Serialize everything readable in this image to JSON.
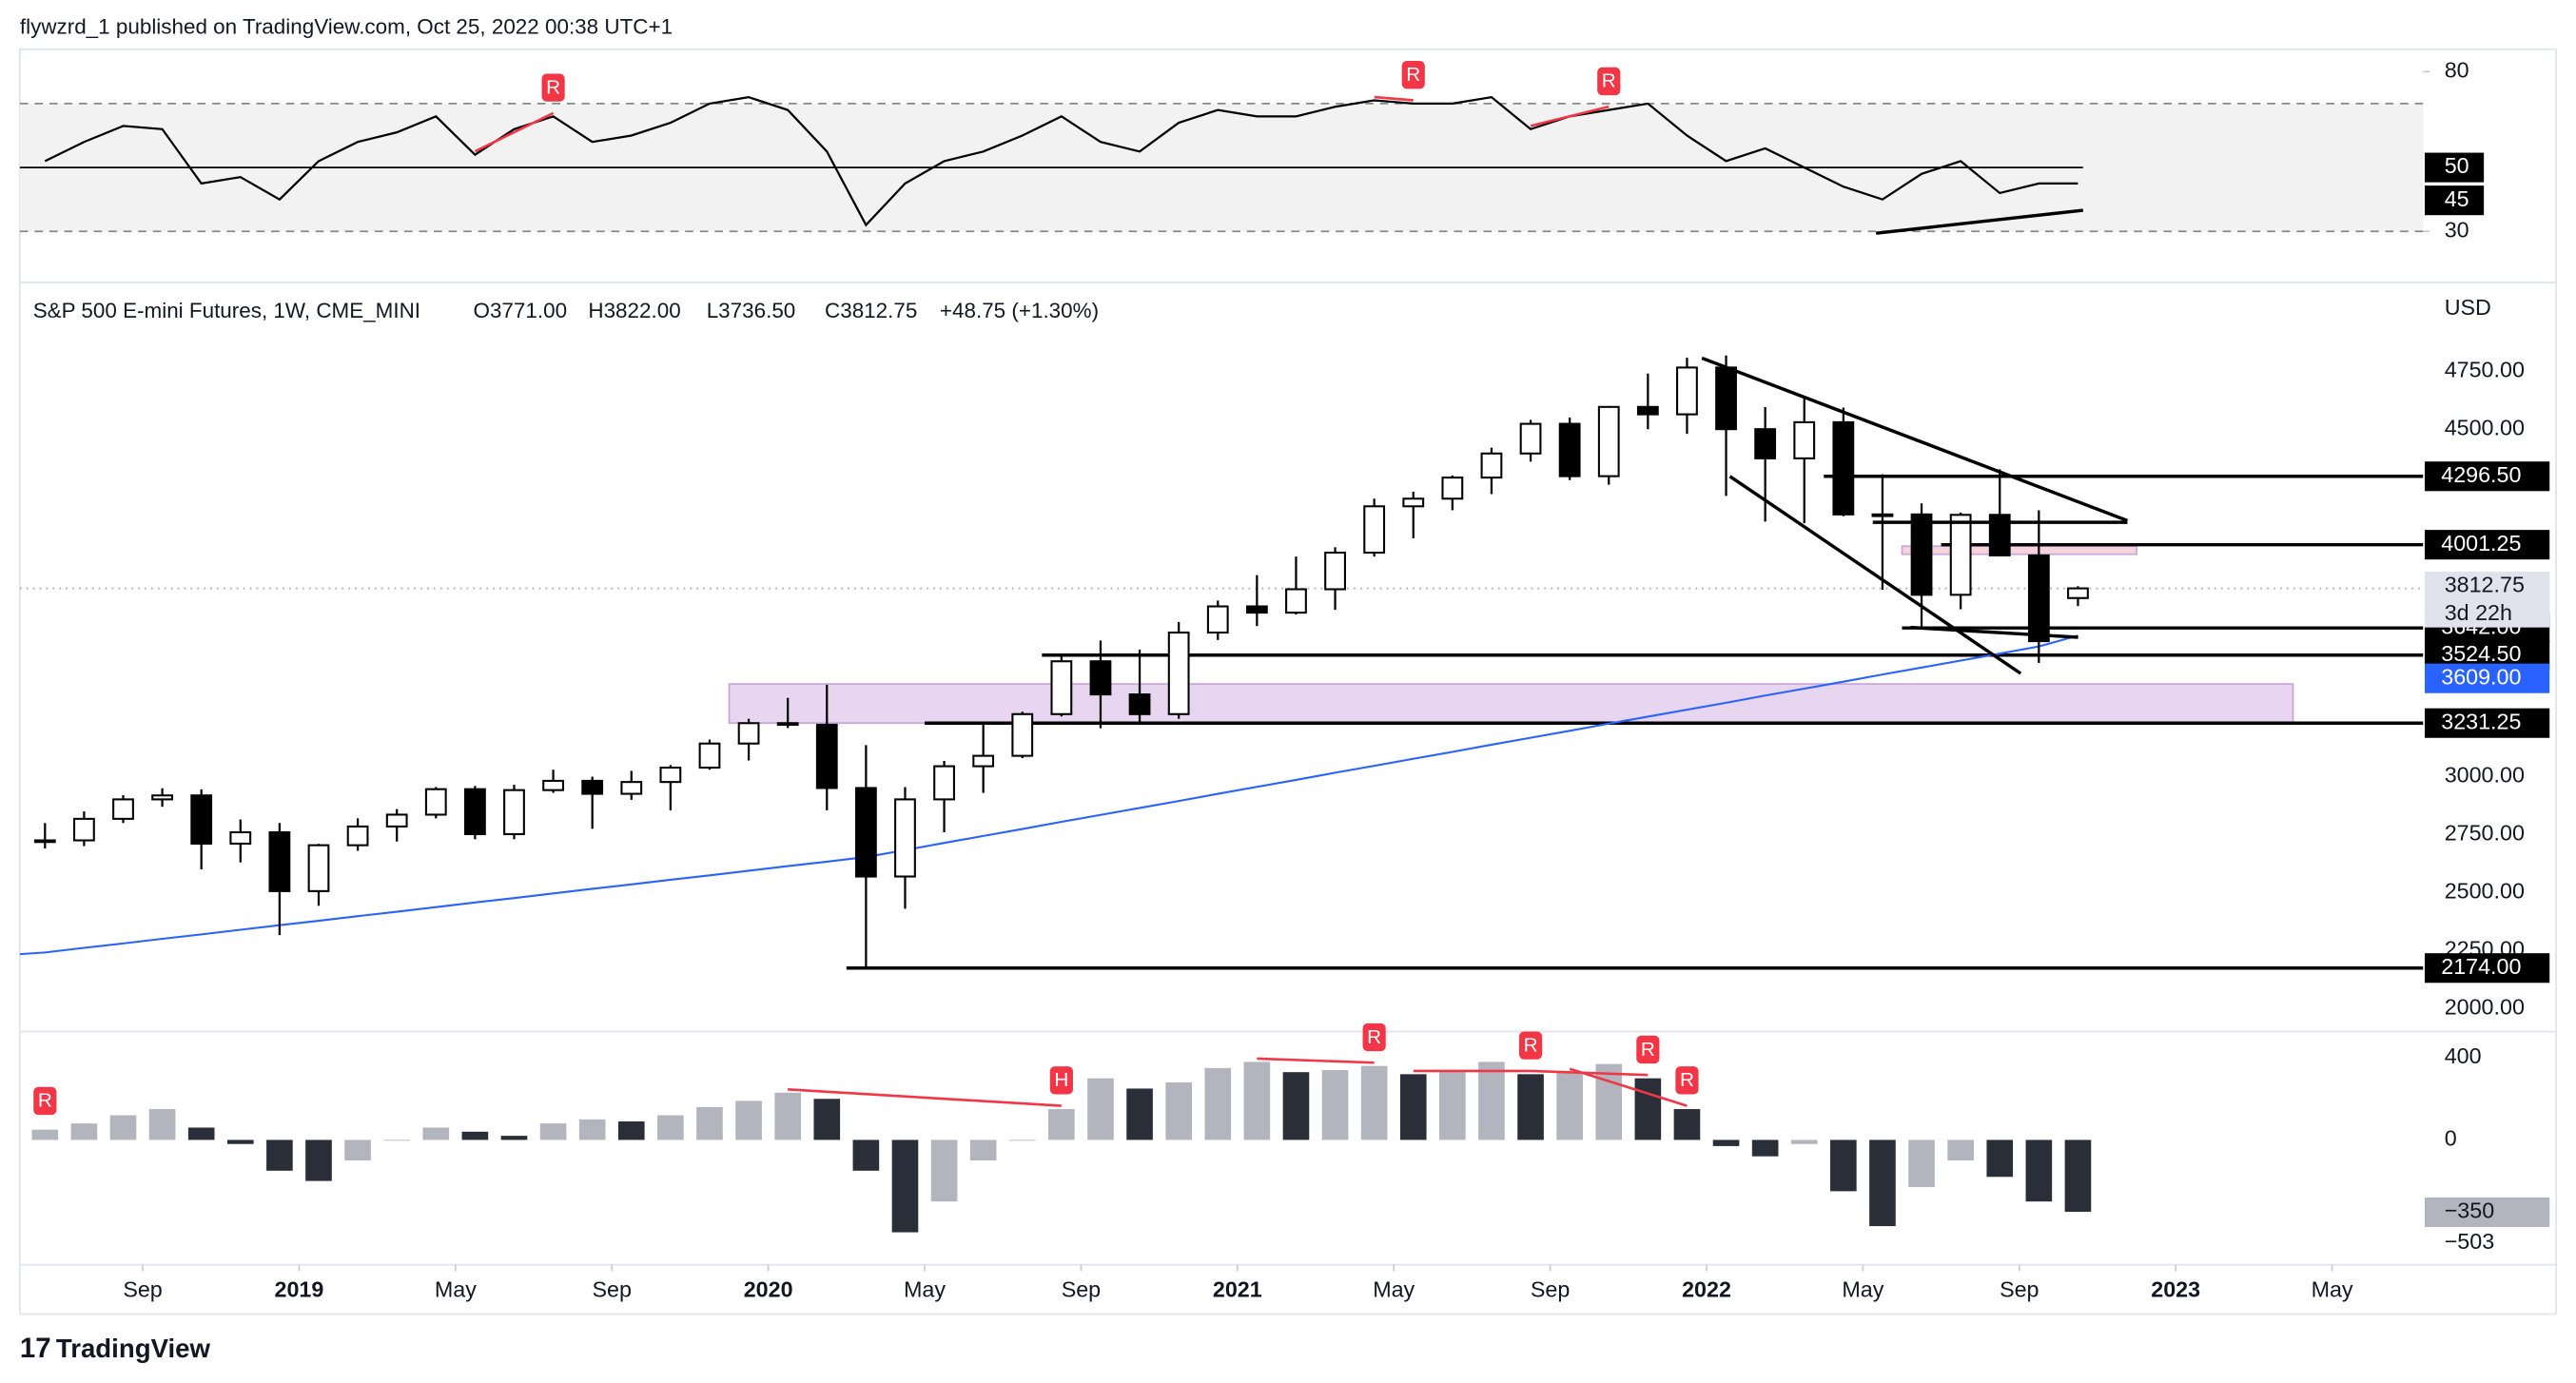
{
  "header": {
    "byline": "flywzrd_1 published on TradingView.com, Oct 25, 2022 00:38 UTC+1",
    "symbol": "S&P 500 E-mini Futures, 1W, CME_MINI",
    "ohlc": [
      "O3771.00",
      "H3822.00",
      "L3736.50",
      "C3812.75",
      "+48.75 (+1.30%)"
    ],
    "currency": "USD",
    "countdown": "3d 22h",
    "footer": "TradingView"
  },
  "chart_data": [
    {
      "type": "line",
      "x": [
        "2018-06",
        "2018-07",
        "2018-08",
        "2018-09",
        "2018-10",
        "2018-11",
        "2018-12",
        "2019-01",
        "2019-02",
        "2019-03",
        "2019-04",
        "2019-05",
        "2019-06",
        "2019-07",
        "2019-08",
        "2019-09",
        "2019-10",
        "2019-11",
        "2019-12",
        "2020-01",
        "2020-02",
        "2020-03",
        "2020-04",
        "2020-05",
        "2020-06",
        "2020-07",
        "2020-08",
        "2020-09",
        "2020-10",
        "2020-11",
        "2020-12",
        "2021-01",
        "2021-02",
        "2021-03",
        "2021-04",
        "2021-05",
        "2021-06",
        "2021-07",
        "2021-08",
        "2021-09",
        "2021-10",
        "2021-11",
        "2021-12",
        "2022-01",
        "2022-02",
        "2022-03",
        "2022-04",
        "2022-05",
        "2022-06",
        "2022-07",
        "2022-08",
        "2022-09",
        "2022-10"
      ],
      "values": [
        52,
        58,
        63,
        62,
        45,
        47,
        40,
        52,
        58,
        61,
        66,
        54,
        62,
        66,
        58,
        60,
        64,
        70,
        72,
        68,
        55,
        32,
        45,
        52,
        55,
        60,
        66,
        58,
        55,
        64,
        68,
        66,
        66,
        69,
        71,
        70,
        70,
        72,
        62,
        66,
        68,
        70,
        60,
        52,
        56,
        50,
        44,
        40,
        48,
        52,
        42,
        45,
        45
      ],
      "color": "#000000",
      "ylim": [
        14,
        87
      ],
      "yticks": [
        80,
        50,
        30
      ],
      "bands": [
        70,
        30
      ],
      "band_color": "#f2f2f2",
      "annotations": [
        {
          "label": "R",
          "from": "2019-05",
          "to": "2019-07"
        },
        {
          "label": "R",
          "from": "2021-04",
          "to": "2021-05"
        },
        {
          "label": "R",
          "from": "2021-08",
          "to": "2021-10"
        }
      ],
      "annotation_color": "#f23645"
    },
    {
      "type": "candlestick",
      "x": [
        "2018-06",
        "2018-07",
        "2018-08",
        "2018-09",
        "2018-10",
        "2018-11",
        "2018-12",
        "2019-01",
        "2019-02",
        "2019-03",
        "2019-04",
        "2019-05",
        "2019-06",
        "2019-07",
        "2019-08",
        "2019-09",
        "2019-10",
        "2019-11",
        "2019-12",
        "2020-01",
        "2020-02",
        "2020-03",
        "2020-04",
        "2020-05",
        "2020-06",
        "2020-07",
        "2020-08",
        "2020-09",
        "2020-10",
        "2020-11",
        "2020-12",
        "2021-01",
        "2021-02",
        "2021-03",
        "2021-04",
        "2021-05",
        "2021-06",
        "2021-07",
        "2021-08",
        "2021-09",
        "2021-10",
        "2021-11",
        "2021-12",
        "2022-01",
        "2022-02",
        "2022-03",
        "2022-04",
        "2022-05",
        "2022-06",
        "2022-07",
        "2022-08",
        "2022-09",
        "2022-10"
      ],
      "open": [
        2720,
        2725,
        2818,
        2902,
        2919,
        2711,
        2760,
        2506,
        2704,
        2785,
        2836,
        2946,
        2752,
        2942,
        2982,
        2926,
        2977,
        3039,
        3143,
        3231,
        3224,
        2951,
        2569,
        2902,
        3045,
        3090,
        3270,
        3498,
        3355,
        3270,
        3622,
        3735,
        3708,
        3809,
        3967,
        4167,
        4200,
        4291,
        4395,
        4523,
        4297,
        4596,
        4564,
        4766,
        4500,
        4374,
        4530,
        4132,
        4132,
        3785,
        4130,
        3955,
        3771
      ],
      "high": [
        2800,
        2850,
        2920,
        2950,
        2945,
        2815,
        2800,
        2710,
        2820,
        2860,
        2955,
        2960,
        2965,
        3030,
        3000,
        3025,
        3050,
        3160,
        3250,
        3340,
        3397,
        3136,
        2955,
        3068,
        3233,
        3280,
        3525,
        3588,
        3549,
        3668,
        3760,
        3870,
        3950,
        3990,
        4200,
        4230,
        4300,
        4420,
        4540,
        4550,
        4600,
        4740,
        4808,
        4818,
        4595,
        4637,
        4593,
        4305,
        4180,
        4140,
        4327,
        4150,
        3822
      ],
      "low": [
        2690,
        2700,
        2800,
        2870,
        2600,
        2630,
        2316,
        2443,
        2680,
        2720,
        2820,
        2730,
        2730,
        2930,
        2775,
        2900,
        2855,
        3030,
        3070,
        3210,
        2855,
        2174,
        2430,
        2760,
        2930,
        3080,
        3260,
        3209,
        3233,
        3250,
        3590,
        3650,
        3700,
        3720,
        3950,
        4029,
        4150,
        4220,
        4360,
        4280,
        4260,
        4500,
        4480,
        4212,
        4101,
        4094,
        4124,
        3807,
        3639,
        3723,
        3955,
        3491,
        3736.5
      ],
      "close": [
        2725,
        2818,
        2902,
        2919,
        2711,
        2760,
        2506,
        2704,
        2785,
        2836,
        2946,
        2752,
        2942,
        2982,
        2926,
        2977,
        3039,
        3143,
        3231,
        3224,
        2951,
        2569,
        2902,
        3045,
        3090,
        3270,
        3498,
        3355,
        3270,
        3622,
        3735,
        3708,
        3809,
        3967,
        4167,
        4200,
        4291,
        4395,
        4523,
        4297,
        4596,
        4564,
        4766,
        4500,
        4374,
        4530,
        4132,
        4132,
        3785,
        4130,
        3955,
        3585,
        3812.75
      ],
      "up_color": "#ffffff",
      "down_color": "#000000",
      "border_color": "#000000",
      "ylim": [
        1900,
        5133
      ],
      "yticks": [
        {
          "value": 4750,
          "label": "4750.00"
        },
        {
          "value": 4500,
          "label": "4500.00"
        },
        {
          "value": 3000,
          "label": "3000.00"
        },
        {
          "value": 2750,
          "label": "2750.00"
        },
        {
          "value": 2500,
          "label": "2500.00"
        },
        {
          "value": 2250,
          "label": "2250.00"
        },
        {
          "value": 2000,
          "label": "2000.00"
        }
      ],
      "xticks": [
        {
          "value": "2018-09",
          "label": "Sep"
        },
        {
          "value": "2019-01",
          "label": "2019"
        },
        {
          "value": "2019-05",
          "label": "May"
        },
        {
          "value": "2019-09",
          "label": "Sep"
        },
        {
          "value": "2020-01",
          "label": "2020"
        },
        {
          "value": "2020-05",
          "label": "May"
        },
        {
          "value": "2020-09",
          "label": "Sep"
        },
        {
          "value": "2021-01",
          "label": "2021"
        },
        {
          "value": "2021-05",
          "label": "May"
        },
        {
          "value": "2021-09",
          "label": "Sep"
        },
        {
          "value": "2022-01",
          "label": "2022"
        },
        {
          "value": "2022-05",
          "label": "May"
        },
        {
          "value": "2022-09",
          "label": "Sep"
        },
        {
          "value": "2023-01",
          "label": "2023"
        },
        {
          "value": "2023-05",
          "label": "May"
        }
      ],
      "ma": {
        "color": "#2962ff",
        "values": [
          2241,
          2261,
          2280,
          2300,
          2319,
          2339,
          2359,
          2378,
          2398,
          2417,
          2437,
          2457,
          2476,
          2496,
          2516,
          2535,
          2555,
          2574,
          2594,
          2614,
          2633,
          2653,
          2683,
          2714,
          2744,
          2774,
          2805,
          2835,
          2865,
          2895,
          2926,
          2956,
          2986,
          3017,
          3047,
          3077,
          3107,
          3138,
          3168,
          3198,
          3229,
          3259,
          3289,
          3319,
          3350,
          3380,
          3410,
          3441,
          3471,
          3501,
          3531,
          3562,
          3609
        ],
        "last_label": "3609.00"
      },
      "levels": [
        {
          "value": 4296.5,
          "label": "4296.50",
          "from": "2022-04"
        },
        {
          "value": 4001.25,
          "label": "4001.25",
          "from": "2022-07"
        },
        {
          "value": 3642,
          "label": "3642.00",
          "from": "2022-06"
        },
        {
          "value": 3524.5,
          "label": "3524.50",
          "from": "2020-08"
        },
        {
          "value": 3231.25,
          "label": "3231.25",
          "from": "2020-05"
        },
        {
          "value": 2174,
          "label": "2174.00",
          "from": "2020-03"
        }
      ],
      "zones": [
        {
          "from": "2019-12",
          "to": "2023-04",
          "values": [
            3231.25,
            3400
          ],
          "color": "#e8d5f0"
        },
        {
          "from": "2022-06",
          "to": "2022-12",
          "values": [
            3960,
            3995
          ],
          "color": "#f6d3dc"
        }
      ]
    },
    {
      "type": "histogram",
      "x": [
        "2018-06",
        "2018-07",
        "2018-08",
        "2018-09",
        "2018-10",
        "2018-11",
        "2018-12",
        "2019-01",
        "2019-02",
        "2019-03",
        "2019-04",
        "2019-05",
        "2019-06",
        "2019-07",
        "2019-08",
        "2019-09",
        "2019-10",
        "2019-11",
        "2019-12",
        "2020-01",
        "2020-02",
        "2020-03",
        "2020-04",
        "2020-05",
        "2020-06",
        "2020-07",
        "2020-08",
        "2020-09",
        "2020-10",
        "2020-11",
        "2020-12",
        "2021-01",
        "2021-02",
        "2021-03",
        "2021-04",
        "2021-05",
        "2021-06",
        "2021-07",
        "2021-08",
        "2021-09",
        "2021-10",
        "2021-11",
        "2021-12",
        "2022-01",
        "2022-02",
        "2022-03",
        "2022-04",
        "2022-05",
        "2022-06",
        "2022-07",
        "2022-08",
        "2022-09",
        "2022-10"
      ],
      "values": [
        50,
        80,
        120,
        150,
        60,
        -20,
        -150,
        -200,
        -100,
        0,
        60,
        40,
        20,
        80,
        100,
        90,
        120,
        160,
        190,
        230,
        200,
        -150,
        -450,
        -300,
        -100,
        0,
        150,
        300,
        250,
        280,
        350,
        380,
        330,
        340,
        360,
        320,
        340,
        380,
        320,
        330,
        370,
        300,
        150,
        -30,
        -80,
        -20,
        -250,
        -420,
        -230,
        -100,
        -180,
        -300,
        -350
      ],
      "last_label": "−350",
      "rising_color": "#b2b5be",
      "falling_color": "#2a2e39",
      "ylim": [
        -608,
        528
      ],
      "yticks": [
        400,
        0,
        {
          "value": -503,
          "label": "−503"
        }
      ],
      "annotations": [
        {
          "label": "R",
          "from": "2018-06",
          "to": "2018-06"
        },
        {
          "label": "H",
          "from": "2020-01",
          "to": "2020-08"
        },
        {
          "label": "R",
          "from": "2021-01",
          "to": "2021-04"
        },
        {
          "label": "R",
          "from": "2021-05",
          "to": "2021-08"
        },
        {
          "label": "R",
          "from": "2021-08",
          "to": "2021-11"
        },
        {
          "label": "R",
          "from": "2021-09",
          "to": "2021-12"
        }
      ],
      "annotation_color": "#f23645"
    }
  ]
}
